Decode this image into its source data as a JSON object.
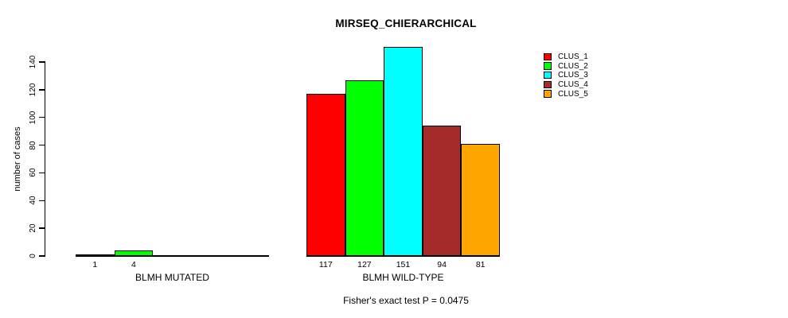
{
  "title": "MIRSEQ_CHIERARCHICAL",
  "subtitle": "Fisher's exact test P = 0.0475",
  "chart_data": {
    "type": "bar",
    "title": "MIRSEQ_CHIERARCHICAL",
    "ylabel": "number of cases",
    "xlabel": "",
    "yticks": [
      0,
      20,
      40,
      60,
      80,
      100,
      120,
      140
    ],
    "ylim": [
      0,
      151
    ],
    "grid": false,
    "legend_position": "top-right",
    "categories": [
      "CLUS_1",
      "CLUS_2",
      "CLUS_3",
      "CLUS_4",
      "CLUS_5"
    ],
    "legend": [
      {
        "label": "CLUS_1",
        "color": "#FF0000"
      },
      {
        "label": "CLUS_2",
        "color": "#00FF00"
      },
      {
        "label": "CLUS_3",
        "color": "#00FFFF"
      },
      {
        "label": "CLUS_4",
        "color": "#A52A2A"
      },
      {
        "label": "CLUS_5",
        "color": "#FFA500"
      }
    ],
    "groups": [
      {
        "label": "BLMH MUTATED",
        "values": [
          1,
          4,
          0,
          0,
          0
        ],
        "value_labels": [
          "1",
          "4",
          "",
          "",
          ""
        ]
      },
      {
        "label": "BLMH WILD-TYPE",
        "values": [
          117,
          127,
          151,
          94,
          81
        ],
        "value_labels": [
          "117",
          "127",
          "151",
          "94",
          "81"
        ]
      }
    ],
    "annotation": "Fisher's exact test P = 0.0475"
  }
}
